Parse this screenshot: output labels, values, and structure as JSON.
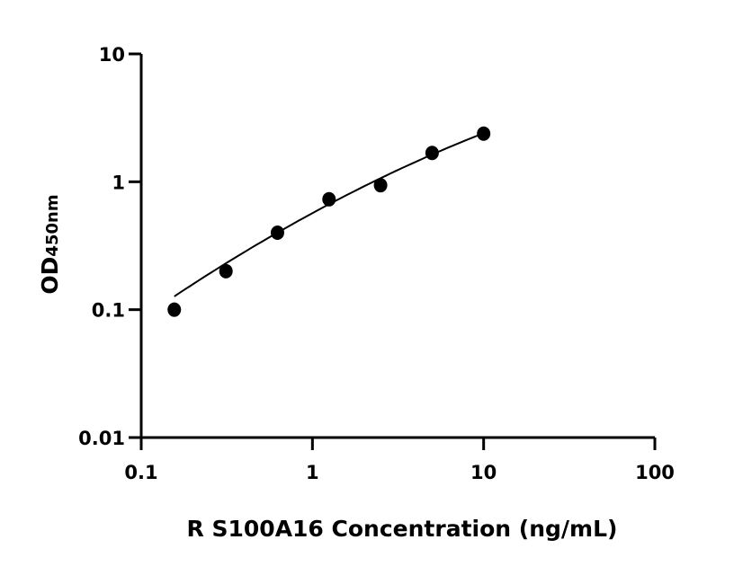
{
  "chart_data": {
    "type": "scatter",
    "title": "",
    "xlabel": "R S100A16 Concentration (ng/mL)",
    "ylabel": "OD",
    "ylabel_subscript": "450nm",
    "x_scale": "log",
    "y_scale": "log",
    "xlim": [
      0.1,
      100
    ],
    "ylim": [
      0.01,
      10
    ],
    "x_ticks": [
      "0.1",
      "1",
      "10",
      "100"
    ],
    "y_ticks": [
      "0.01",
      "0.1",
      "1",
      "10"
    ],
    "grid": false,
    "marker_color": "#000000",
    "points": [
      {
        "x": 0.156,
        "y": 0.1
      },
      {
        "x": 0.3125,
        "y": 0.2
      },
      {
        "x": 0.625,
        "y": 0.4
      },
      {
        "x": 1.25,
        "y": 0.73
      },
      {
        "x": 2.5,
        "y": 0.94
      },
      {
        "x": 5,
        "y": 1.68
      },
      {
        "x": 10,
        "y": 2.38
      }
    ],
    "fit_curve": [
      {
        "x": 0.156,
        "y": 0.127
      },
      {
        "x": 1.25,
        "y": 0.667
      },
      {
        "x": 10,
        "y": 2.4
      }
    ]
  }
}
